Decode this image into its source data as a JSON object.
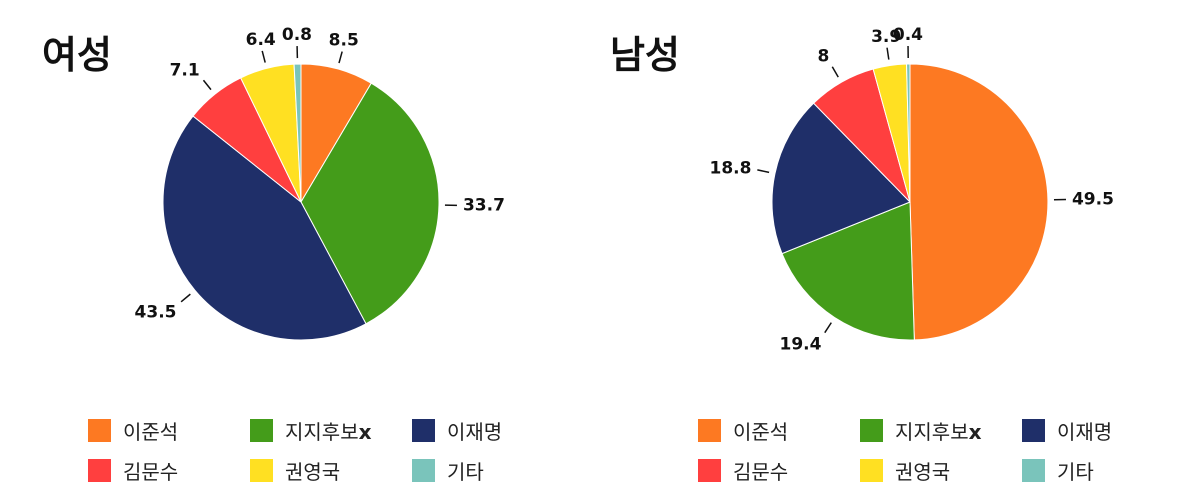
{
  "chart_data": [
    {
      "type": "pie",
      "title": "여성",
      "slices": [
        {
          "label": "이준석",
          "value": 8.5,
          "color": "#fd7922"
        },
        {
          "label": "지지후보x",
          "value": 33.7,
          "color": "#449c1a"
        },
        {
          "label": "이재명",
          "value": 43.5,
          "color": "#1f2f69"
        },
        {
          "label": "김문수",
          "value": 7.1,
          "color": "#ff3f3f"
        },
        {
          "label": "권영국",
          "value": 6.4,
          "color": "#ffe022"
        },
        {
          "label": "기타",
          "value": 0.8,
          "color": "#7ac4bb"
        }
      ]
    },
    {
      "type": "pie",
      "title": "남성",
      "slices": [
        {
          "label": "이준석",
          "value": 49.5,
          "color": "#fd7922"
        },
        {
          "label": "지지후보x",
          "value": 19.4,
          "color": "#449c1a"
        },
        {
          "label": "이재명",
          "value": 18.8,
          "color": "#1f2f69"
        },
        {
          "label": "김문수",
          "value": 8,
          "color": "#ff3f3f"
        },
        {
          "label": "권영국",
          "value": 3.9,
          "color": "#ffe022"
        },
        {
          "label": "기타",
          "value": 0.4,
          "color": "#7ac4bb"
        }
      ]
    }
  ],
  "legend": [
    {
      "label": "이준석",
      "color": "#fd7922"
    },
    {
      "label": "지지후보",
      "suffix": "x",
      "color": "#449c1a"
    },
    {
      "label": "이재명",
      "color": "#1f2f69"
    },
    {
      "label": "김문수",
      "color": "#ff3f3f"
    },
    {
      "label": "권영국",
      "color": "#ffe022"
    },
    {
      "label": "기타",
      "color": "#7ac4bb"
    }
  ]
}
